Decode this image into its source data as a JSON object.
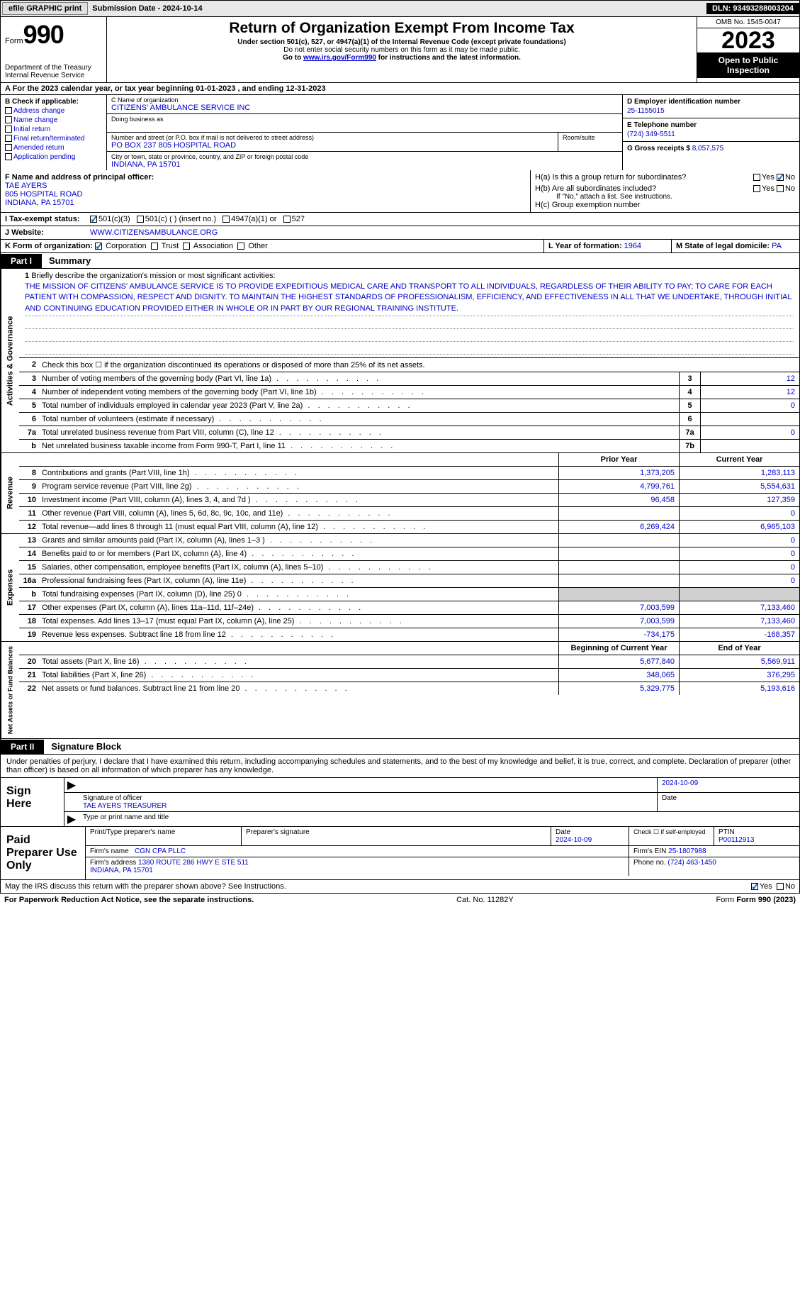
{
  "topbar": {
    "efile_btn": "efile GRAPHIC print",
    "submission_label": "Submission Date - 2024-10-14",
    "dln": "DLN: 93493288003204"
  },
  "header": {
    "form_word": "Form",
    "form_num": "990",
    "dept": "Department of the Treasury\nInternal Revenue Service",
    "title": "Return of Organization Exempt From Income Tax",
    "subtitle1": "Under section 501(c), 527, or 4947(a)(1) of the Internal Revenue Code (except private foundations)",
    "subtitle2": "Do not enter social security numbers on this form as it may be made public.",
    "subtitle3_pre": "Go to ",
    "subtitle3_link": "www.irs.gov/Form990",
    "subtitle3_post": " for instructions and the latest information.",
    "omb": "OMB No. 1545-0047",
    "year": "2023",
    "open_public": "Open to Public Inspection"
  },
  "section_a": "A  For the 2023 calendar year, or tax year beginning 01-01-2023   , and ending 12-31-2023",
  "col_b": {
    "header": "B Check if applicable:",
    "items": [
      "Address change",
      "Name change",
      "Initial return",
      "Final return/terminated",
      "Amended return",
      "Application pending"
    ]
  },
  "col_c": {
    "name_label": "C Name of organization",
    "name_value": "CITIZENS' AMBULANCE SERVICE INC",
    "dba_label": "Doing business as",
    "addr_label": "Number and street (or P.O. box if mail is not delivered to street address)",
    "addr_value": "PO BOX 237 805 HOSPITAL ROAD",
    "room_label": "Room/suite",
    "city_label": "City or town, state or province, country, and ZIP or foreign postal code",
    "city_value": "INDIANA, PA  15701"
  },
  "col_d": {
    "ein_label": "D Employer identification number",
    "ein_value": "25-1155015",
    "phone_label": "E Telephone number",
    "phone_value": "(724) 349-5511",
    "gross_label": "G Gross receipts $",
    "gross_value": "8,057,575"
  },
  "row_f": {
    "label": "F  Name and address of principal officer:",
    "name": "TAE AYERS",
    "addr1": "805 HOSPITAL ROAD",
    "addr2": "INDIANA, PA  15701"
  },
  "row_h": {
    "a_label": "H(a)  Is this a group return for subordinates?",
    "b_label": "H(b)  Are all subordinates included?",
    "b_note": "If \"No,\" attach a list. See instructions.",
    "c_label": "H(c)  Group exemption number",
    "yes": "Yes",
    "no": "No"
  },
  "row_i": {
    "label": "I   Tax-exempt status:",
    "opt1": "501(c)(3)",
    "opt2": "501(c) (  ) (insert no.)",
    "opt3": "4947(a)(1) or",
    "opt4": "527"
  },
  "row_j": {
    "label": "J   Website:",
    "value": "WWW.CITIZENSAMBULANCE.ORG"
  },
  "row_k": {
    "label": "K Form of organization:",
    "opts": [
      "Corporation",
      "Trust",
      "Association",
      "Other"
    ],
    "l_label": "L Year of formation:",
    "l_val": "1964",
    "m_label": "M State of legal domicile:",
    "m_val": "PA"
  },
  "part1": {
    "label": "Part I",
    "title": "Summary"
  },
  "mission": {
    "num": "1",
    "label": "Briefly describe the organization's mission or most significant activities:",
    "text": "THE MISSION OF CITIZENS' AMBULANCE SERVICE IS TO PROVIDE EXPEDITIOUS MEDICAL CARE AND TRANSPORT TO ALL INDIVIDUALS, REGARDLESS OF THEIR ABILITY TO PAY; TO CARE FOR EACH PATIENT WITH COMPASSION, RESPECT AND DIGNITY. TO MAINTAIN THE HIGHEST STANDARDS OF PROFESSIONALISM, EFFICIENCY, AND EFFECTIVENESS IN ALL THAT WE UNDERTAKE, THROUGH INITIAL AND CONTINUING EDUCATION PROVIDED EITHER IN WHOLE OR IN PART BY OUR REGIONAL TRAINING INSTITUTE."
  },
  "lines_gov": [
    {
      "n": "2",
      "t": "Check this box   ☐   if the organization discontinued its operations or disposed of more than 25% of its net assets.",
      "box": "",
      "v": ""
    },
    {
      "n": "3",
      "t": "Number of voting members of the governing body (Part VI, line 1a)",
      "box": "3",
      "v": "12"
    },
    {
      "n": "4",
      "t": "Number of independent voting members of the governing body (Part VI, line 1b)",
      "box": "4",
      "v": "12"
    },
    {
      "n": "5",
      "t": "Total number of individuals employed in calendar year 2023 (Part V, line 2a)",
      "box": "5",
      "v": "0"
    },
    {
      "n": "6",
      "t": "Total number of volunteers (estimate if necessary)",
      "box": "6",
      "v": ""
    },
    {
      "n": "7a",
      "t": "Total unrelated business revenue from Part VIII, column (C), line 12",
      "box": "7a",
      "v": "0"
    },
    {
      "n": "b",
      "t": "Net unrelated business taxable income from Form 990-T, Part I, line 11",
      "box": "7b",
      "v": ""
    }
  ],
  "col_headers": {
    "prior": "Prior Year",
    "current": "Current Year",
    "begin": "Beginning of Current Year",
    "end": "End of Year"
  },
  "side_labels": {
    "gov": "Activities & Governance",
    "rev": "Revenue",
    "exp": "Expenses",
    "net": "Net Assets or Fund Balances"
  },
  "revenue": [
    {
      "n": "8",
      "t": "Contributions and grants (Part VIII, line 1h)",
      "p": "1,373,205",
      "c": "1,283,113"
    },
    {
      "n": "9",
      "t": "Program service revenue (Part VIII, line 2g)",
      "p": "4,799,761",
      "c": "5,554,631"
    },
    {
      "n": "10",
      "t": "Investment income (Part VIII, column (A), lines 3, 4, and 7d )",
      "p": "96,458",
      "c": "127,359"
    },
    {
      "n": "11",
      "t": "Other revenue (Part VIII, column (A), lines 5, 6d, 8c, 9c, 10c, and 11e)",
      "p": "",
      "c": "0"
    },
    {
      "n": "12",
      "t": "Total revenue—add lines 8 through 11 (must equal Part VIII, column (A), line 12)",
      "p": "6,269,424",
      "c": "6,965,103"
    }
  ],
  "expenses": [
    {
      "n": "13",
      "t": "Grants and similar amounts paid (Part IX, column (A), lines 1–3 )",
      "p": "",
      "c": "0"
    },
    {
      "n": "14",
      "t": "Benefits paid to or for members (Part IX, column (A), line 4)",
      "p": "",
      "c": "0"
    },
    {
      "n": "15",
      "t": "Salaries, other compensation, employee benefits (Part IX, column (A), lines 5–10)",
      "p": "",
      "c": "0"
    },
    {
      "n": "16a",
      "t": "Professional fundraising fees (Part IX, column (A), line 11e)",
      "p": "",
      "c": "0"
    },
    {
      "n": "b",
      "t": "Total fundraising expenses (Part IX, column (D), line 25) 0",
      "p": "shaded",
      "c": "shaded"
    },
    {
      "n": "17",
      "t": "Other expenses (Part IX, column (A), lines 11a–11d, 11f–24e)",
      "p": "7,003,599",
      "c": "7,133,460"
    },
    {
      "n": "18",
      "t": "Total expenses. Add lines 13–17 (must equal Part IX, column (A), line 25)",
      "p": "7,003,599",
      "c": "7,133,460"
    },
    {
      "n": "19",
      "t": "Revenue less expenses. Subtract line 18 from line 12",
      "p": "-734,175",
      "c": "-168,357"
    }
  ],
  "netassets": [
    {
      "n": "20",
      "t": "Total assets (Part X, line 16)",
      "p": "5,677,840",
      "c": "5,569,911"
    },
    {
      "n": "21",
      "t": "Total liabilities (Part X, line 26)",
      "p": "348,065",
      "c": "376,295"
    },
    {
      "n": "22",
      "t": "Net assets or fund balances. Subtract line 21 from line 20",
      "p": "5,329,775",
      "c": "5,193,616"
    }
  ],
  "part2": {
    "label": "Part II",
    "title": "Signature Block"
  },
  "sig_text": "Under penalties of perjury, I declare that I have examined this return, including accompanying schedules and statements, and to the best of my knowledge and belief, it is true, correct, and complete. Declaration of preparer (other than officer) is based on all information of which preparer has any knowledge.",
  "sign": {
    "left": "Sign Here",
    "date": "2024-10-09",
    "sig_label": "Signature of officer",
    "date_label": "Date",
    "officer": "TAE AYERS  TREASURER",
    "type_label": "Type or print name and title"
  },
  "prep": {
    "left": "Paid Preparer Use Only",
    "h1": "Print/Type preparer's name",
    "h2": "Preparer's signature",
    "h3_label": "Date",
    "h3_val": "2024-10-09",
    "h4": "Check ☐ if self-employed",
    "h5_label": "PTIN",
    "h5_val": "P00112913",
    "firm_label": "Firm's name",
    "firm_val": "CGN CPA PLLC",
    "ein_label": "Firm's EIN",
    "ein_val": "25-1807988",
    "addr_label": "Firm's address",
    "addr_val": "1380 ROUTE 286 HWY E STE 511\nINDIANA, PA  15701",
    "phone_label": "Phone no.",
    "phone_val": "(724) 463-1450"
  },
  "footer": {
    "discuss": "May the IRS discuss this return with the preparer shown above? See Instructions.",
    "yes": "Yes",
    "no": "No",
    "paperwork": "For Paperwork Reduction Act Notice, see the separate instructions.",
    "cat": "Cat. No. 11282Y",
    "form_ref": "Form 990 (2023)"
  }
}
